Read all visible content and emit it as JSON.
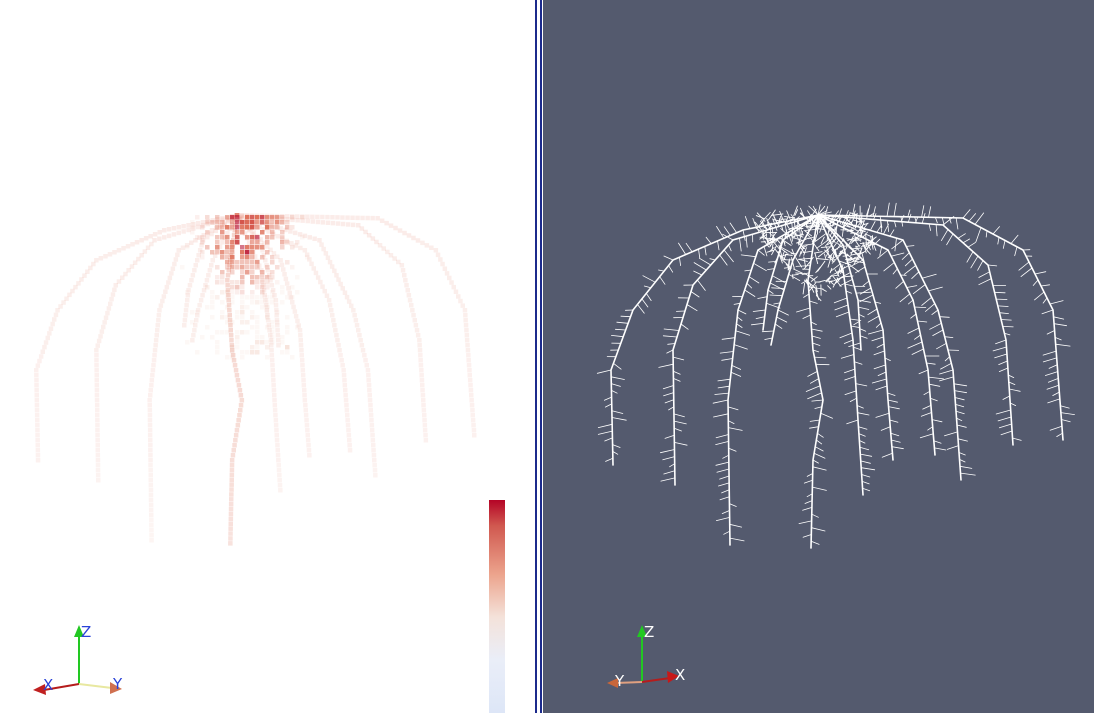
{
  "left_view": {
    "background_color": "#ffffff",
    "colormap": {
      "high_color": "#b40426",
      "mid_color": "#f2f2f2",
      "low_color": "#dde6f7"
    },
    "orientation_axes": {
      "x_label": "X",
      "y_label": "Y",
      "z_label": "Z"
    }
  },
  "right_view": {
    "background_color": "#545a6e",
    "root_color": "#ffffff",
    "orientation_axes": {
      "x_label": "X",
      "y_label": "Y",
      "z_label": "Z"
    }
  },
  "splitter_color": "#1c2a8c"
}
